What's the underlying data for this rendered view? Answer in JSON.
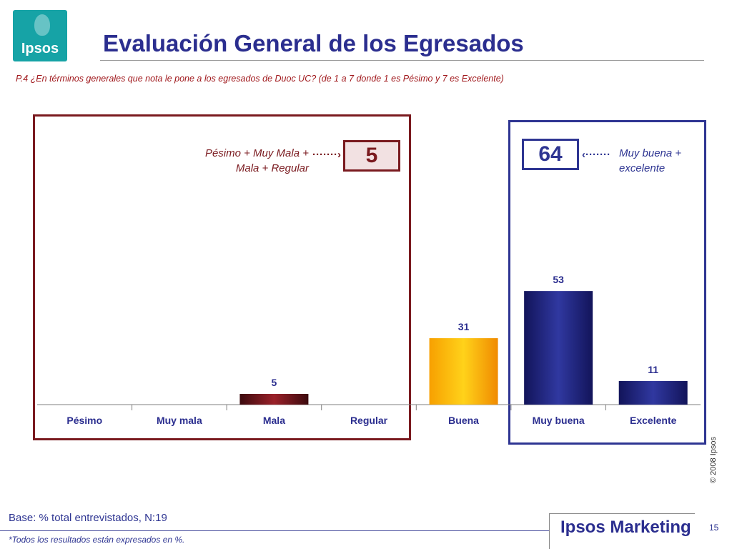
{
  "header": {
    "logo_text": "Ipsos",
    "title": "Evaluación General de los Egresados",
    "question": "P.4 ¿En términos generales que nota le pone a los egresados de Duoc UC? (de 1 a 7 donde 1 es Pésimo y 7 es Excelente)"
  },
  "annotations": {
    "negative_label_line1": "Pésimo + Muy Mala +",
    "negative_label_line2": "Mala + Regular",
    "negative_value": "5",
    "positive_label_line1": "Muy buena +",
    "positive_label_line2": "excelente",
    "positive_value": "64",
    "arrow_right_glyph": "·······›",
    "arrow_left_glyph": "‹·······"
  },
  "chart_data": {
    "type": "bar",
    "title": "",
    "xlabel": "",
    "ylabel": "",
    "ylim": [
      0,
      100
    ],
    "grid": false,
    "categories": [
      "Pésimo",
      "Muy mala",
      "Mala",
      "Regular",
      "Buena",
      "Muy buena",
      "Excelente"
    ],
    "values": [
      0,
      0,
      5,
      0,
      31,
      53,
      11
    ],
    "value_labels": [
      "",
      "",
      "5",
      "",
      "31",
      "53",
      "11"
    ],
    "bar_colors": [
      "#7a1a1f",
      "#7a1a1f",
      "#7a1a1f",
      "#7a1a1f",
      "#f5a800",
      "#24277a",
      "#24277a"
    ]
  },
  "footer": {
    "copyright": "© 2008 Ipsos",
    "base": "Base: % total entrevistados, N:19",
    "note": "*Todos los resultados están expresados en %.",
    "brand": "Ipsos Marketing",
    "page_number": "15"
  },
  "colors": {
    "title": "#2b2e8f",
    "negative": "#7a1a1f",
    "positive": "#2e3592",
    "buena": "#f5a800",
    "logo_bg": "#16a3a6"
  }
}
